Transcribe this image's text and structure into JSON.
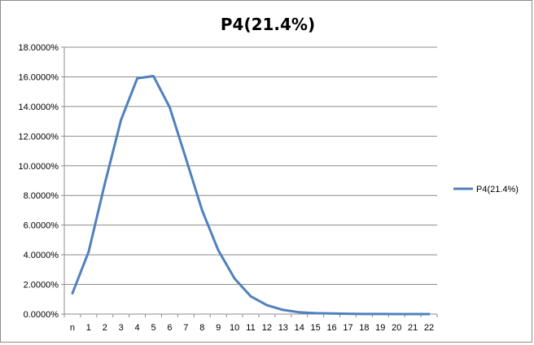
{
  "chart_data": {
    "type": "line",
    "title": "P4(21.4%)",
    "xlabel": "",
    "ylabel": "",
    "categories": [
      "n",
      "1",
      "2",
      "3",
      "4",
      "5",
      "6",
      "7",
      "8",
      "9",
      "10",
      "11",
      "12",
      "13",
      "14",
      "15",
      "16",
      "17",
      "18",
      "19",
      "20",
      "21",
      "22"
    ],
    "series": [
      {
        "name": "P4(21.4%)",
        "color": "#4f81bd",
        "values": [
          1.4,
          4.2,
          8.8,
          13.1,
          15.9,
          16.05,
          13.95,
          10.5,
          7.0,
          4.3,
          2.4,
          1.2,
          0.6,
          0.28,
          0.12,
          0.06,
          0.04,
          0.02,
          0.01,
          0.005,
          0.003,
          0.002,
          0.001
        ]
      }
    ],
    "ylim": [
      0,
      18
    ],
    "yticks": [
      0,
      2,
      4,
      6,
      8,
      10,
      12,
      14,
      16,
      18
    ],
    "ytick_labels": [
      "0.0000%",
      "2.0000%",
      "4.0000%",
      "6.0000%",
      "8.0000%",
      "10.0000%",
      "12.0000%",
      "14.0000%",
      "16.0000%",
      "18.0000%"
    ],
    "grid": true,
    "legend": "right"
  }
}
